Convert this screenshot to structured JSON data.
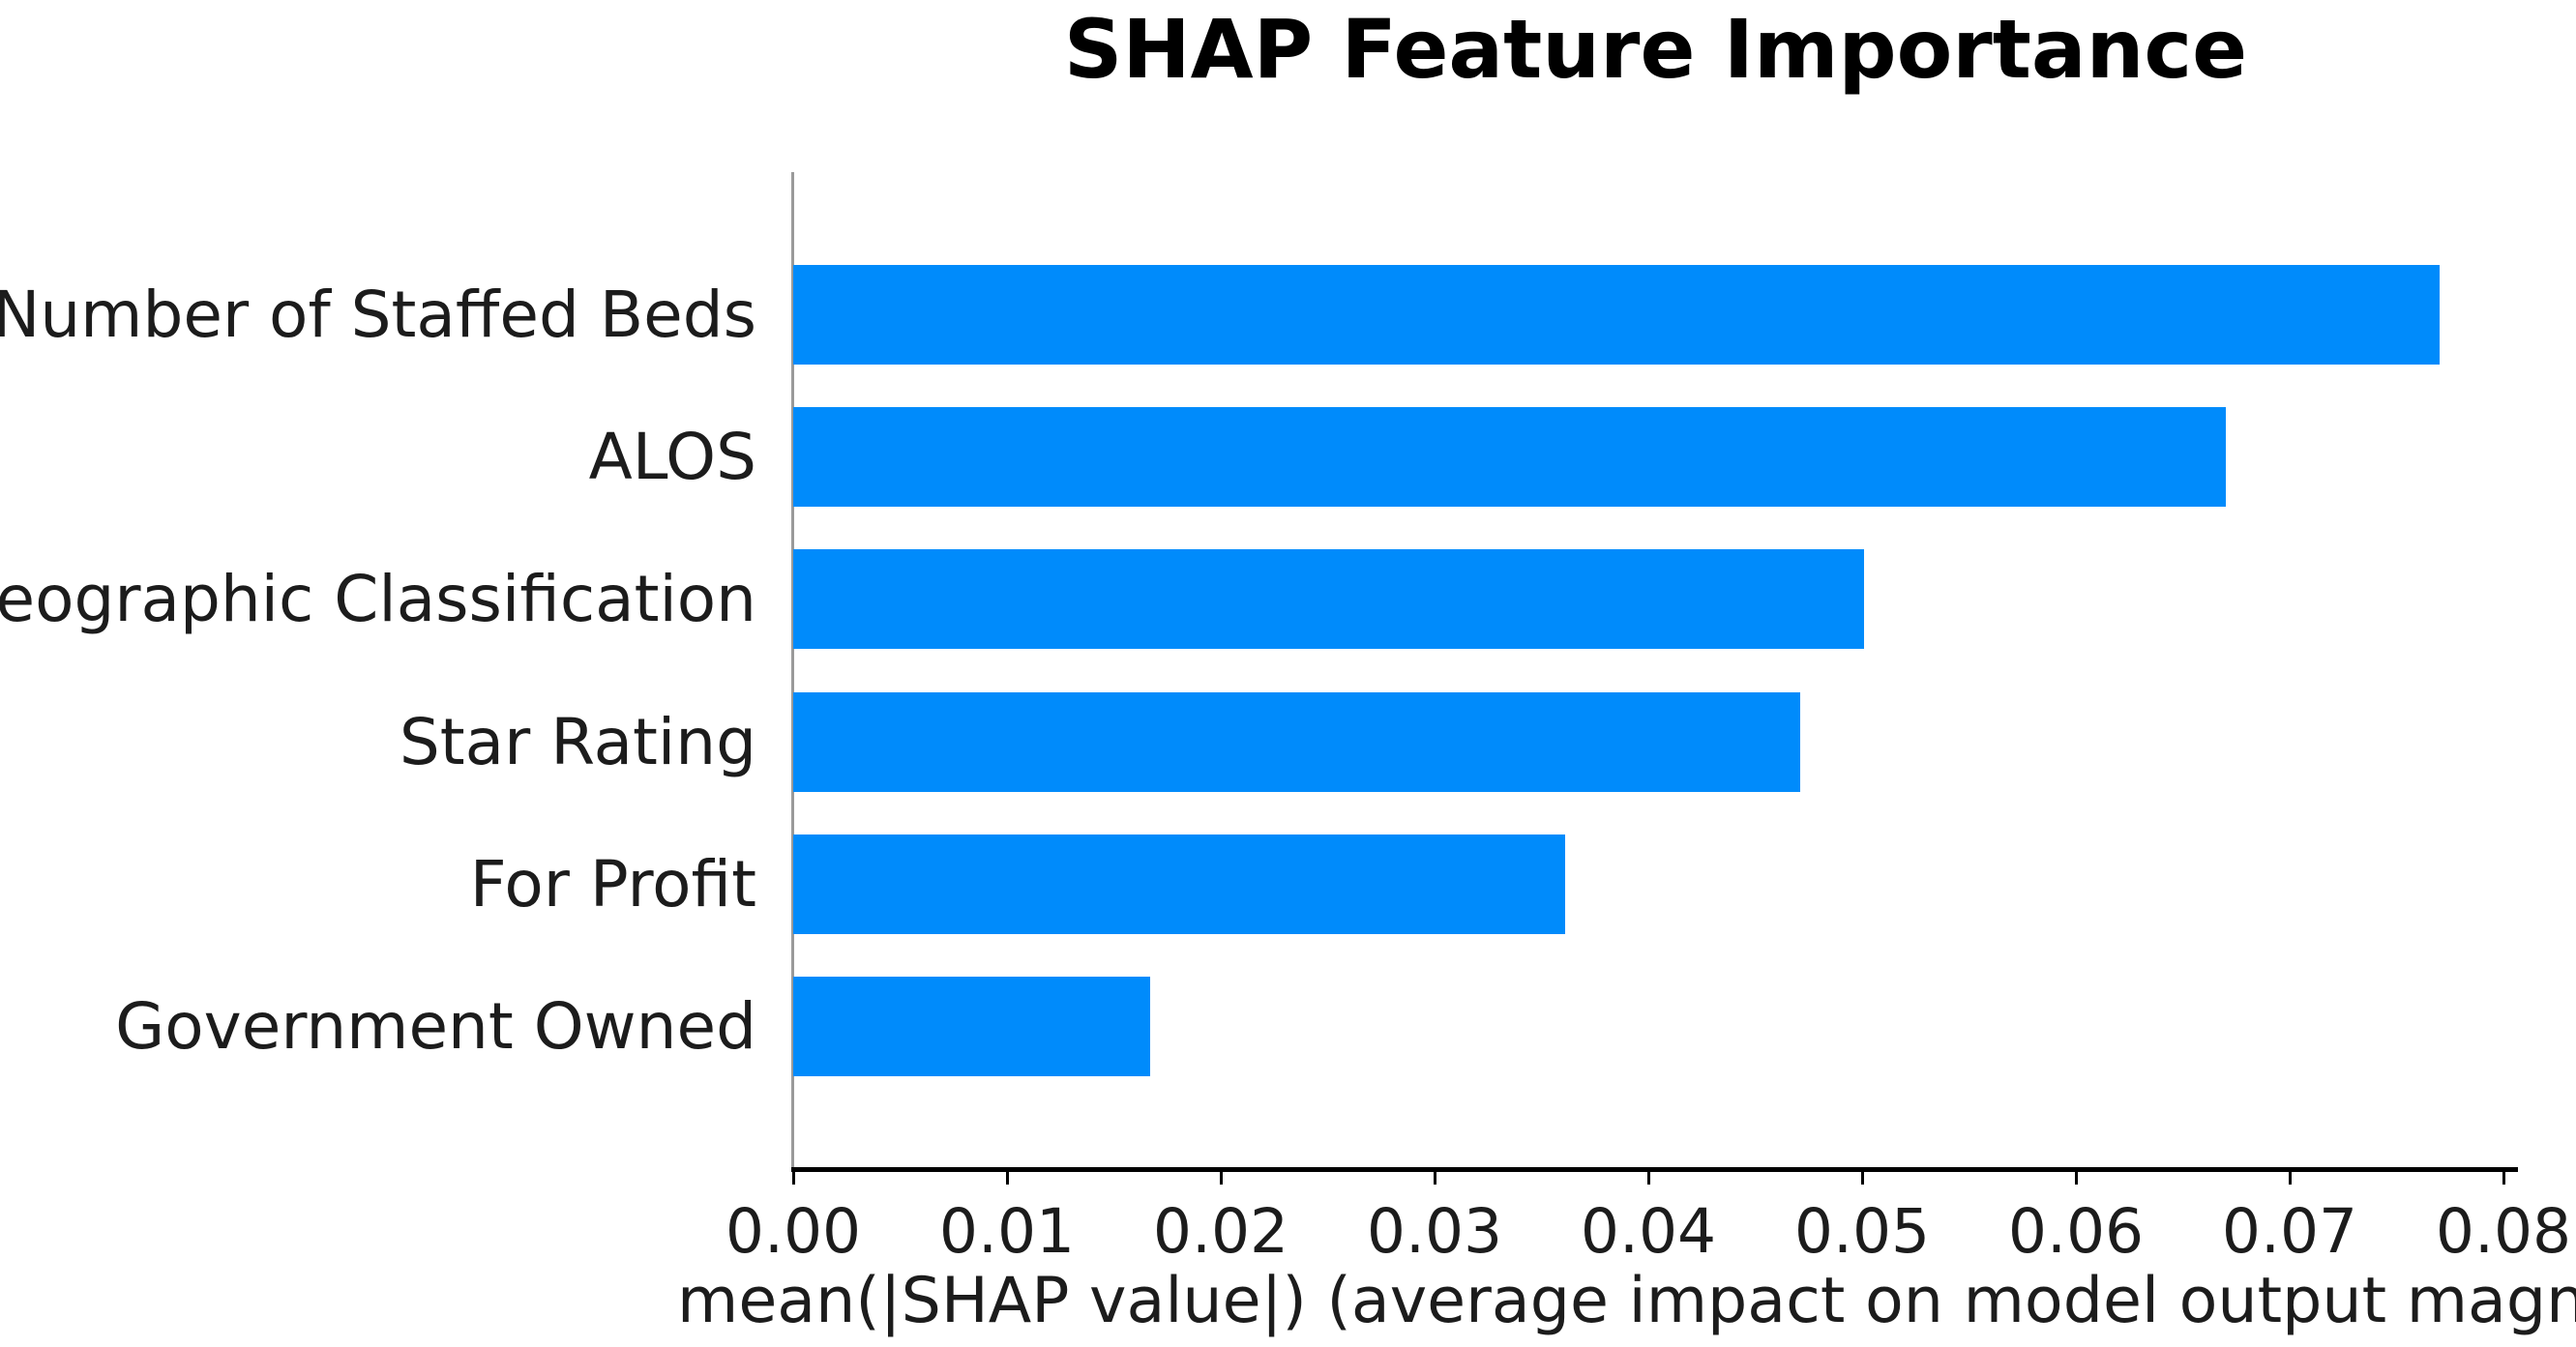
{
  "title": "SHAP Feature Importance",
  "chart_data": {
    "type": "bar",
    "orientation": "horizontal",
    "title": "SHAP Feature Importance",
    "xlabel": "mean(|SHAP value|) (average impact on model output magnitude)",
    "ylabel": "",
    "categories": [
      "Number of Staffed Beds",
      "ALOS",
      "Geographic Classification",
      "Star Rating",
      "For Profit",
      "Government Owned"
    ],
    "values": [
      0.077,
      0.067,
      0.0501,
      0.0471,
      0.0361,
      0.0167
    ],
    "xlim": [
      0.0,
      0.08
    ],
    "xticks": [
      0.0,
      0.01,
      0.02,
      0.03,
      0.04,
      0.05,
      0.06,
      0.07,
      0.08
    ],
    "xtick_format_decimals": 2,
    "grid": false,
    "legend": null,
    "bar_color": "#008bfb",
    "left_spine_color": "#9a9a9a",
    "bottom_spine_color": "#000000",
    "text_color": "#1c1c1c"
  }
}
